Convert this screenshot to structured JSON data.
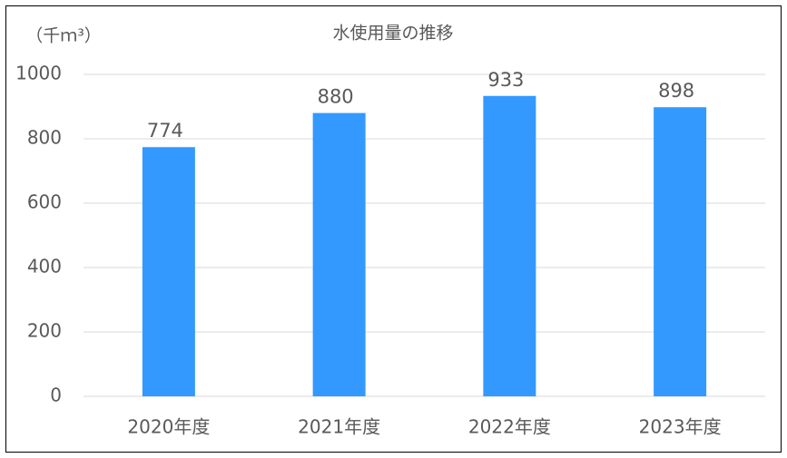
{
  "chart_data": {
    "type": "bar",
    "title": "水使用量の推移",
    "y_label": "（千ｍ³）",
    "categories": [
      "2020年度",
      "2021年度",
      "2022年度",
      "2023年度"
    ],
    "values": [
      774,
      880,
      933,
      898
    ],
    "color": "#3399ff",
    "ylim": [
      0,
      1000
    ],
    "yticks": [
      0,
      200,
      400,
      600,
      800,
      1000
    ],
    "grid": true
  }
}
